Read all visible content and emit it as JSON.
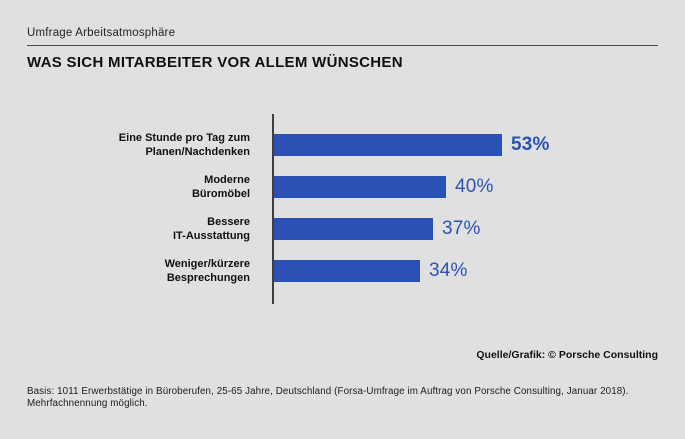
{
  "page": {
    "background_color": "#e0e0e0",
    "accent_color": "#2a51b5"
  },
  "header": {
    "kicker": "Umfrage Arbeitsatmosphäre"
  },
  "chart_data": {
    "type": "bar",
    "orientation": "horizontal",
    "title": "WAS SICH MITARBEITER VOR ALLEM WÜNSCHEN",
    "categories": [
      [
        "Eine Stunde pro Tag zum",
        "Planen/Nachdenken"
      ],
      [
        "Moderne",
        "Büromöbel"
      ],
      [
        "Bessere",
        "IT-Ausstattung"
      ],
      [
        "Weniger/kürzere",
        "Besprechungen"
      ]
    ],
    "values": [
      53,
      40,
      37,
      34
    ],
    "unit": "%",
    "value_labels": [
      "53%",
      "40%",
      "37%",
      "34%"
    ],
    "emphasized_value_index": 0,
    "bar_color": "#2a51b5",
    "value_label_color": "#2a51b5",
    "axis_color": "#3d3d3d",
    "xlim": [
      0,
      60
    ],
    "grid": false,
    "legend": false
  },
  "footer": {
    "source": "Quelle/Grafik: © Porsche Consulting",
    "basis": "Basis: 1011 Erwerbstätige in Büroberufen, 25-65 Jahre, Deutschland (Forsa-Umfrage im Auftrag von Porsche Consulting, Januar 2018). Mehrfachnennung möglich."
  }
}
